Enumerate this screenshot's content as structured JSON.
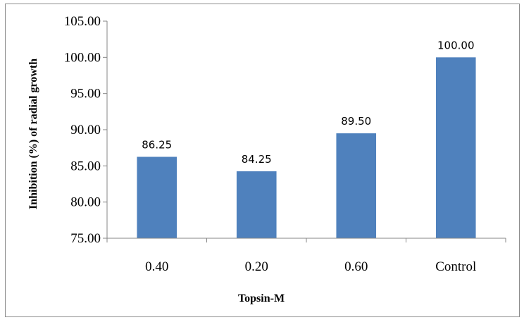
{
  "chart_data": {
    "type": "bar",
    "categories": [
      "0.40",
      "0.20",
      "0.60",
      "Control"
    ],
    "values": [
      86.25,
      84.25,
      89.5,
      100.0
    ],
    "data_labels": [
      "86.25",
      "84.25",
      "89.50",
      "100.00"
    ],
    "title": "",
    "xlabel": "Topsin-M",
    "ylabel": "Inhibition (%) of radial growth",
    "ylim": [
      75,
      105
    ],
    "yticks": [
      75,
      80,
      85,
      90,
      95,
      100,
      105
    ],
    "ytick_labels": [
      "75.00",
      "80.00",
      "85.00",
      "90.00",
      "95.00",
      "100.00",
      "105.00"
    ],
    "bar_color": "#4f81bd",
    "grid": false,
    "legend": "none"
  }
}
